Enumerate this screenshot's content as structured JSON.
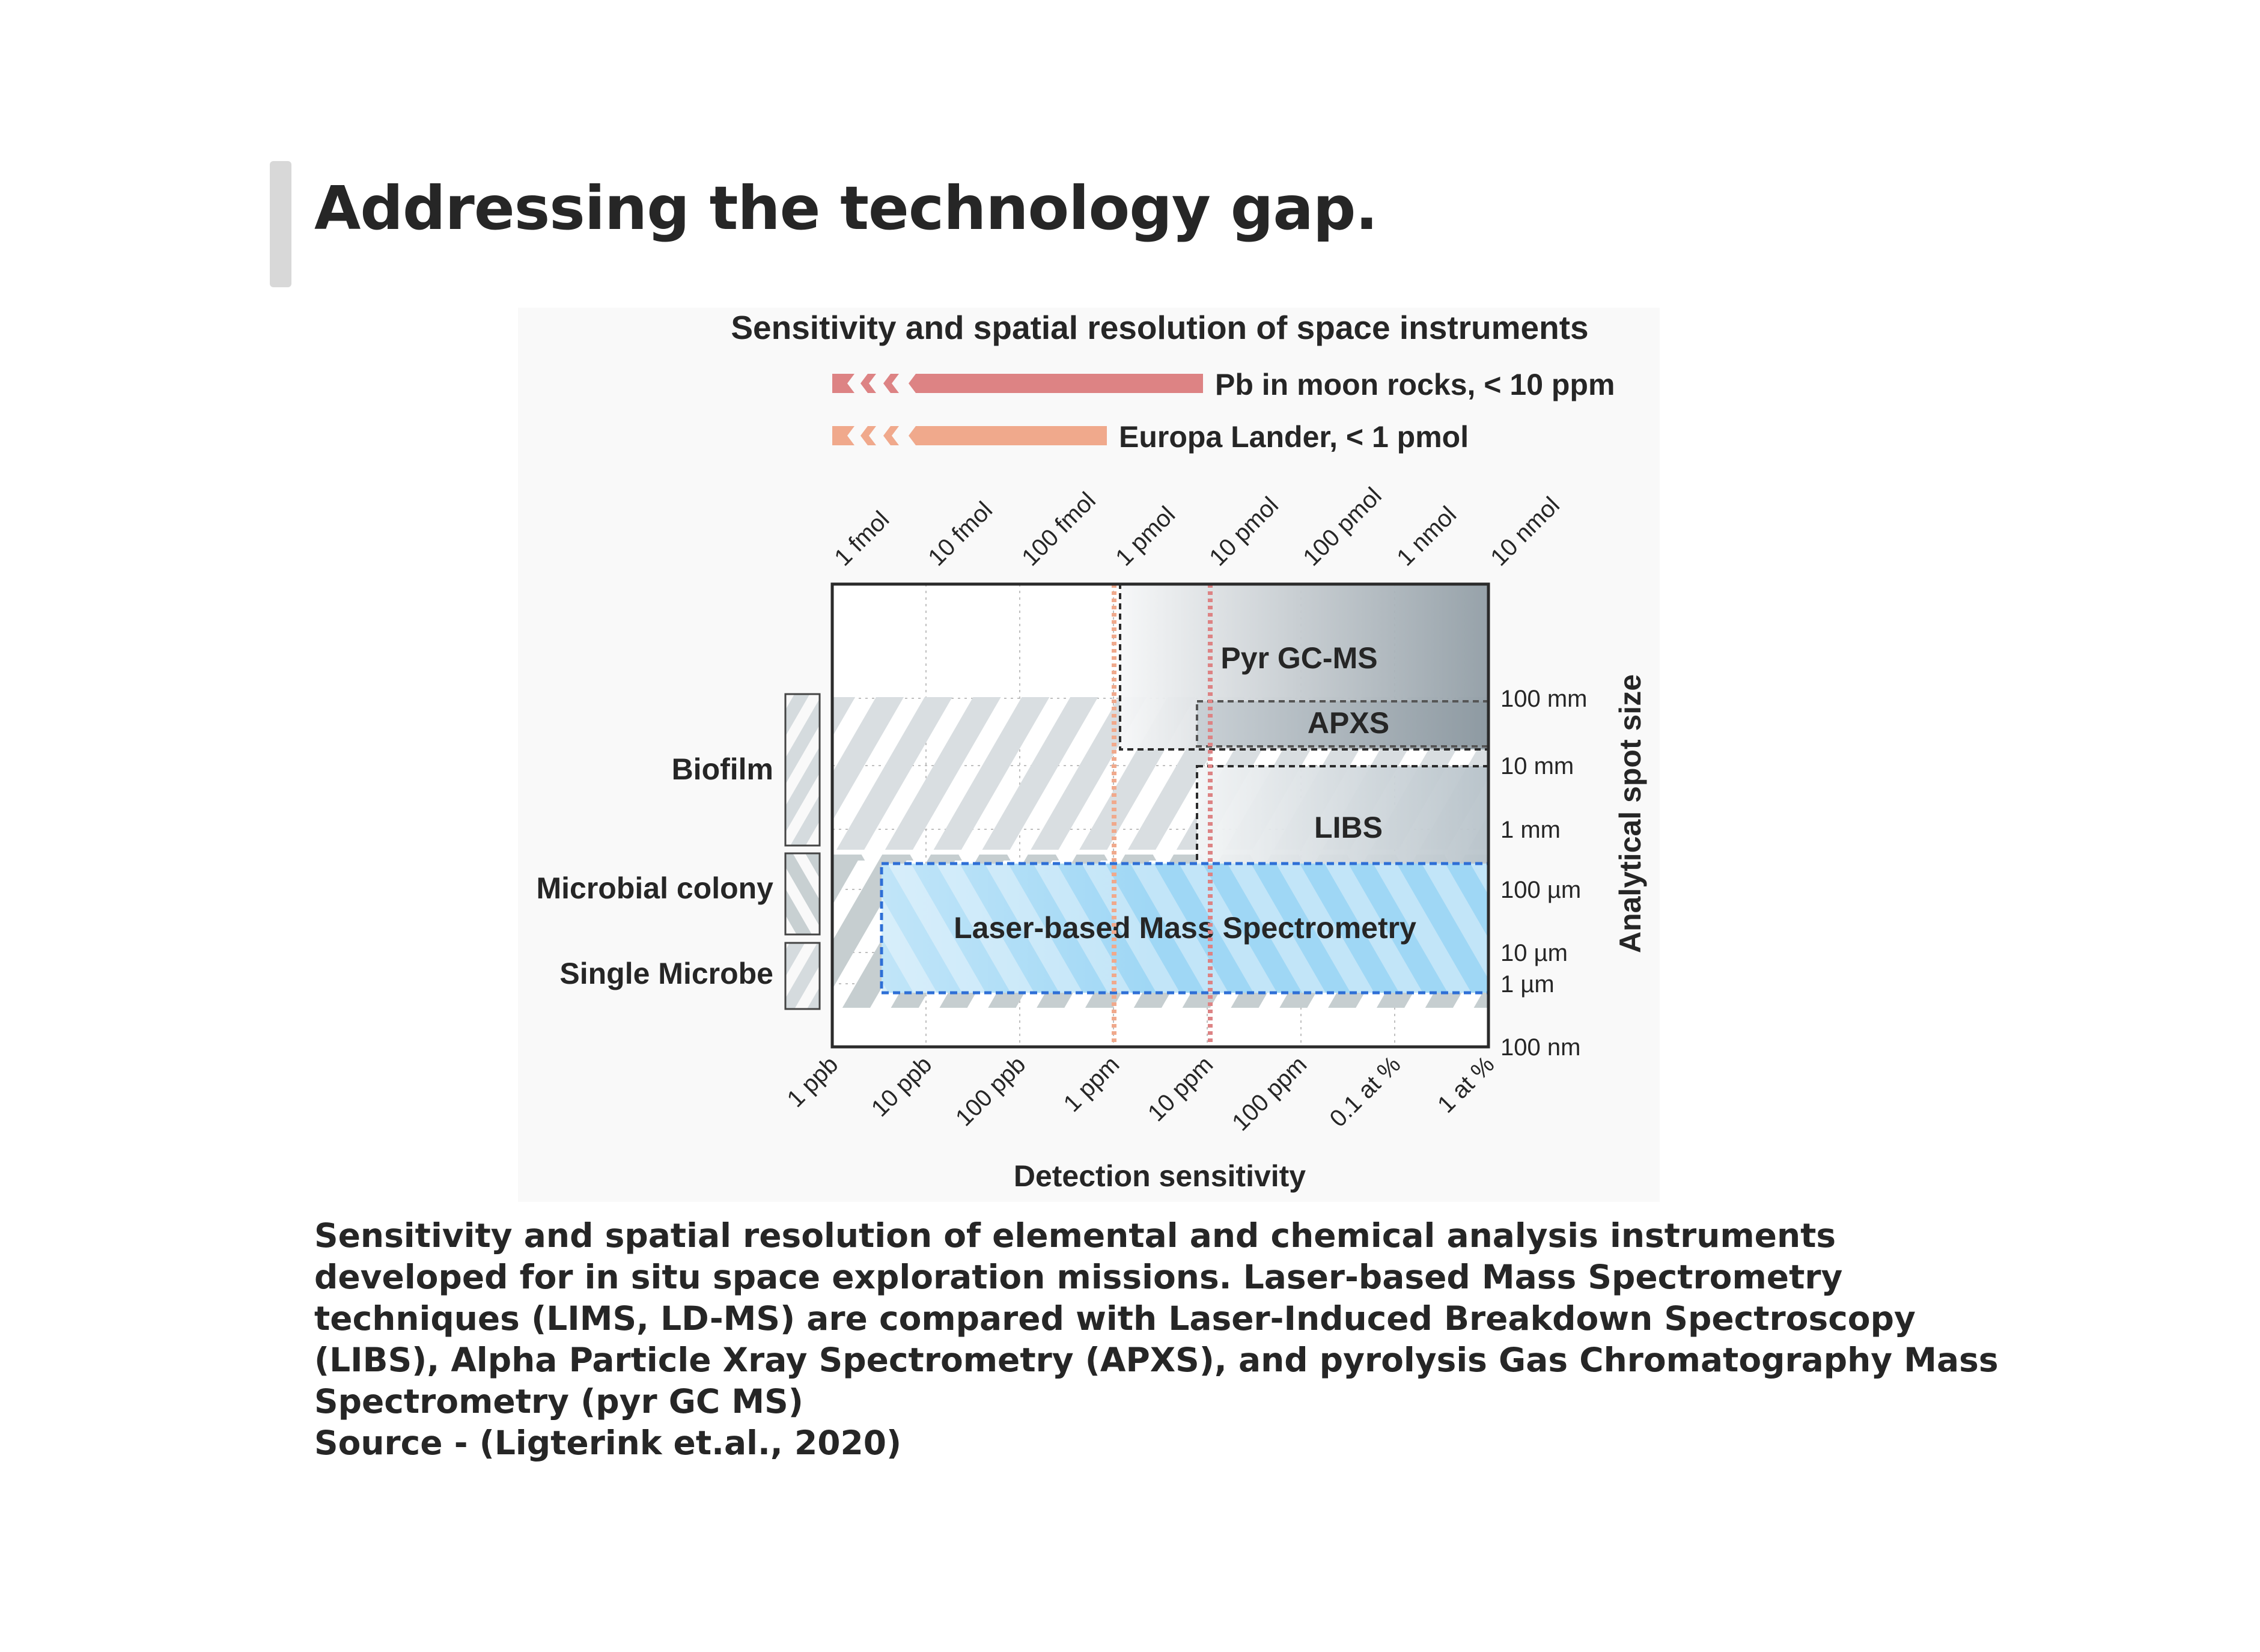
{
  "slide": {
    "title": "Addressing the technology gap."
  },
  "caption": {
    "text": "Sensitivity and spatial resolution of elemental and chemical analysis instruments developed for in situ space exploration missions. Laser-based Mass Spectrometry techniques (LIMS, LD-MS) are compared with Laser-Induced Breakdown Spectroscopy (LIBS), Alpha Particle Xray Spectrometry (APXS), and pyrolysis Gas Chromatography Mass Spectrometry (pyr GC MS)",
    "source": "Source - (Ligterink et.al., 2020)"
  },
  "chart_data": {
    "type": "heatmap",
    "title": "Sensitivity and spatial resolution of space instruments",
    "xlabel": "Detection sensitivity",
    "ylabel": "Analytical spot size",
    "x_ticks_bottom": [
      "1 ppb",
      "10 ppb",
      "100 ppb",
      "1 ppm",
      "10 ppm",
      "100 ppm",
      "0.1 at %",
      "1 at %"
    ],
    "x_ticks_top": [
      "1 fmol",
      "10 fmol",
      "100 fmol",
      "1 pmol",
      "10 pmol",
      "100 pmol",
      "1 nmol",
      "10 nmol"
    ],
    "y_ticks": [
      "100 nm",
      "1 µm",
      "10 µm",
      "100 µm",
      "1 mm",
      "10 mm",
      "100 mm"
    ],
    "x_scale": "log",
    "y_scale": "log",
    "grid": true,
    "targets": [
      {
        "label": "Pb in moon rocks, < 10 ppm",
        "threshold": "10 ppm",
        "color": "#dd8384"
      },
      {
        "label": "Europa Lander, < 1 pmol",
        "threshold": "1 pmol",
        "color": "#f0a98c"
      }
    ],
    "sample_scales": [
      {
        "label": "Biofilm",
        "spot_range": [
          "1 mm",
          "10 mm"
        ]
      },
      {
        "label": "Microbial colony",
        "spot_range": [
          "10 µm",
          "100 µm"
        ]
      },
      {
        "label": "Single Microbe",
        "spot_range": [
          "1 µm",
          "10 µm"
        ]
      }
    ],
    "instruments": [
      {
        "label": "Pyr GC-MS",
        "sensitivity_range": [
          "1 ppm",
          "1 at %"
        ],
        "spot_range": [
          "10 mm",
          "1 m"
        ],
        "fill": "gray-gradient"
      },
      {
        "label": "APXS",
        "sensitivity_range": [
          "10 ppm",
          "1 at %"
        ],
        "spot_range": [
          "10 mm",
          "100 mm"
        ],
        "fill": "gray"
      },
      {
        "label": "LIBS",
        "sensitivity_range": [
          "10 ppm",
          "1 at %"
        ],
        "spot_range": [
          "100 µm",
          "5 mm"
        ],
        "fill": "light-gray-gradient"
      },
      {
        "label": "Laser-based Mass Spectrometry",
        "sensitivity_range": [
          "10 ppb",
          "1 at %"
        ],
        "spot_range": [
          "1 µm",
          "100 µm"
        ],
        "fill": "#9fd7f5"
      }
    ],
    "colors": {
      "moon_rocks": "#dd8384",
      "europa": "#f0a98c",
      "lms_blue": "#9fd7f5",
      "lms_border": "#2e6fd6"
    }
  }
}
